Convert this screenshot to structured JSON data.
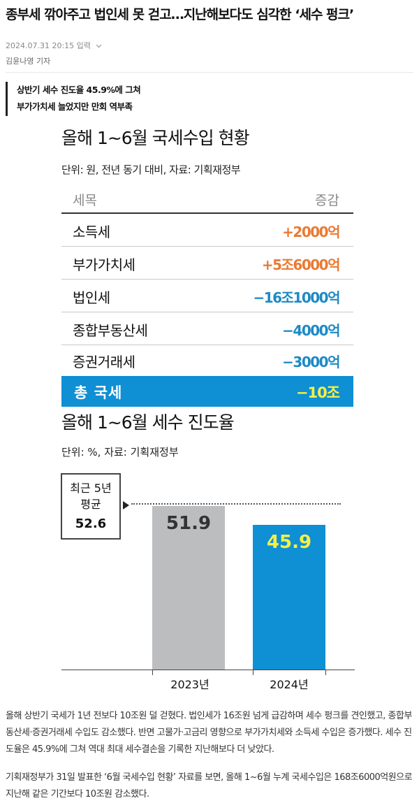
{
  "article": {
    "headline": "종부세 깎아주고 법인세 못 걷고…지난해보다도 심각한 ‘세수 펑크’",
    "date": "2024.07.31 20:15 입력",
    "date_icon": "chevron-down-icon",
    "reporter": "김윤나영 기자",
    "summary": [
      "상반기 세수 진도율 45.9%에 그쳐",
      "부가가치세 늘었지만 만회 역부족"
    ]
  },
  "infographic": {
    "title": "올해 1~6월 국세수입 현황",
    "subtitle": "단위: 원, 전년 동기 대비, 자료: 기획재정부",
    "header": {
      "col1": "세목",
      "col2": "증감"
    },
    "rows": [
      {
        "label": "소득세",
        "value": "+2000억",
        "sign": "pos"
      },
      {
        "label": "부가가치세",
        "value": "+5조6000억",
        "sign": "pos"
      },
      {
        "label": "법인세",
        "value": "−16조1000억",
        "sign": "neg"
      },
      {
        "label": "종합부동산세",
        "value": "−4000억",
        "sign": "neg"
      },
      {
        "label": "증권거래세",
        "value": "−3000억",
        "sign": "neg"
      }
    ],
    "total": {
      "label": "총 국세",
      "value": "−10조"
    },
    "colors": {
      "positive": "#ea7a33",
      "negative": "#1d8ac4",
      "total_bg": "#0f8fd4",
      "total_value": "#f4f046"
    }
  },
  "chart_data": {
    "type": "bar",
    "title": "올해 1~6월 세수 진도율",
    "subtitle": "단위: %, 자료: 기획재정부",
    "categories": [
      "2023년",
      "2024년"
    ],
    "values": [
      51.9,
      45.9
    ],
    "value_labels": [
      "51.9",
      "45.9"
    ],
    "colors": [
      "#bcbdbf",
      "#0f8fd4"
    ],
    "label_colors": [
      "#333333",
      "#f4f046"
    ],
    "reference": {
      "label_line1": "최근 5년",
      "label_line2": "평균",
      "value": 52.6,
      "value_label": "52.6"
    },
    "ylim": [
      0,
      60
    ]
  },
  "body": {
    "p1": "올해 상반기 국세가 1년 전보다 10조원 덜 걷혔다. 법인세가 16조원 넘게 급감하며 세수 펑크를 견인했고, 종합부동산세·증권거래세 수입도 감소했다. 반면 고물가·고금리 영향으로 부가가치세와 소득세 수입은 증가했다. 세수 진도율은 45.9%에 그쳐 역대 최대 세수결손을 기록한 지난해보다 더 낮았다.",
    "p2": "기획재정부가 31일 발표한 ‘6월 국세수입 현황’ 자료를 보면, 올해 1~6월 누계 국세수입은 168조6000억원으로 지난해 같은 기간보다 10조원 감소했다."
  }
}
